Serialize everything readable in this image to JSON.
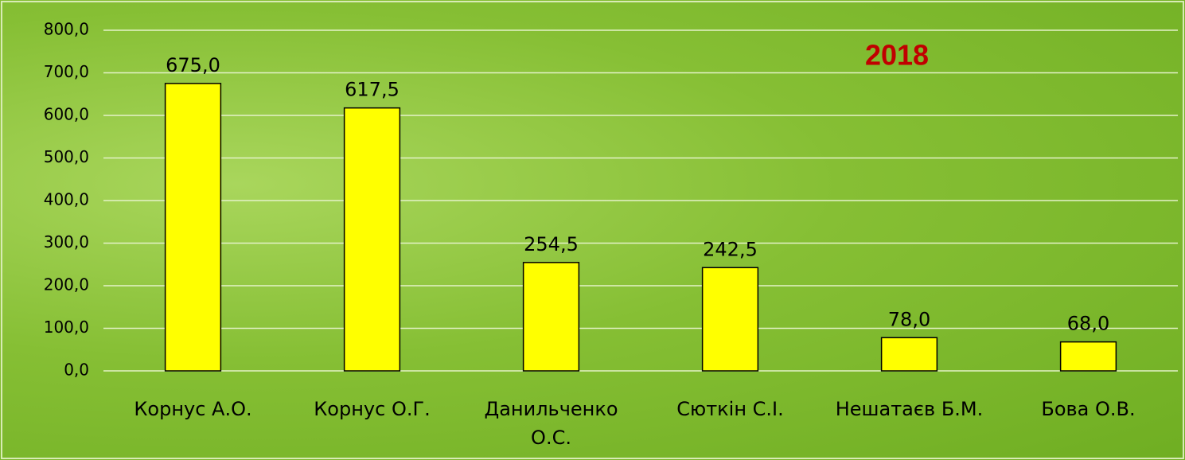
{
  "chart_data": {
    "type": "bar",
    "title": "2018",
    "categories": [
      "Корнус А.О.",
      "Корнус О.Г.",
      "Данильченко О.С.",
      "Сюткін С.І.",
      "Нешатаєв Б.М.",
      "Бова О.В."
    ],
    "values": [
      675.0,
      617.5,
      254.5,
      242.5,
      78.0,
      68.0
    ],
    "value_labels": [
      "675,0",
      "617,5",
      "254,5",
      "242,5",
      "78,0",
      "68,0"
    ],
    "color": "#ffff00",
    "ylim": [
      0,
      800
    ],
    "yticks": [
      {
        "value": 0,
        "label": "0,0"
      },
      {
        "value": 100,
        "label": "100,0"
      },
      {
        "value": 200,
        "label": "200,0"
      },
      {
        "value": 300,
        "label": "300,0"
      },
      {
        "value": 400,
        "label": "400,0"
      },
      {
        "value": 500,
        "label": "500,0"
      },
      {
        "value": 600,
        "label": "600,0"
      },
      {
        "value": 700,
        "label": "700,0"
      },
      {
        "value": 800,
        "label": "800,0"
      }
    ],
    "grid": true
  }
}
